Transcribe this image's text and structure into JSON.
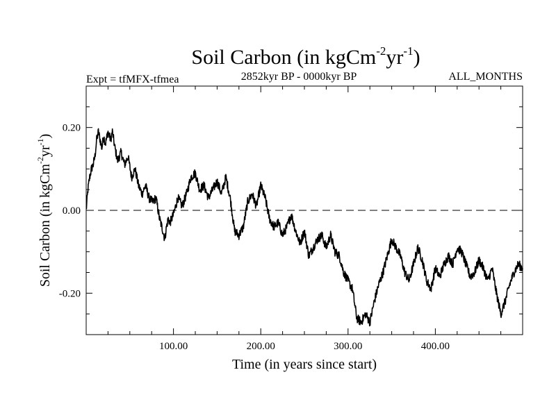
{
  "chart_data": {
    "type": "line",
    "title": "Soil Carbon (in kgCm",
    "title_sup1": "-2",
    "title_mid": "yr",
    "title_sup2": "-1",
    "title_end": ")",
    "subtitle_left": "Expt = tfMFX-tfmea",
    "subtitle_center": "2852kyr BP - 0000kyr BP",
    "subtitle_right": "ALL_MONTHS",
    "xlabel": "Time (in years since start)",
    "ylabel_main": "Soil Carbon (in kgCm",
    "ylabel_sup1": "-2",
    "ylabel_mid": "yr",
    "ylabel_sup2": "-1",
    "ylabel_end": ")",
    "xlim": [
      0,
      500
    ],
    "ylim": [
      -0.3,
      0.3
    ],
    "x_ticks": [
      {
        "value": 100,
        "label": "100.00"
      },
      {
        "value": 200,
        "label": "200.00"
      },
      {
        "value": 300,
        "label": "300.00"
      },
      {
        "value": 400,
        "label": "400.00"
      }
    ],
    "y_ticks": [
      {
        "value": 0.2,
        "label": "0.20"
      },
      {
        "value": 0.0,
        "label": "0.00"
      },
      {
        "value": -0.2,
        "label": "-0.20"
      }
    ],
    "x_minor_step": 25,
    "y_minor_step": 0.05,
    "reference_line": {
      "y": 0.0,
      "style": "dashed"
    },
    "series": [
      {
        "name": "Soil Carbon",
        "color": "#000000",
        "x": [
          0,
          2,
          4,
          6,
          8,
          10,
          12,
          14,
          16,
          18,
          20,
          22,
          25,
          28,
          30,
          33,
          36,
          40,
          44,
          48,
          52,
          56,
          60,
          64,
          68,
          72,
          76,
          80,
          84,
          88,
          90,
          92,
          94,
          96,
          100,
          105,
          110,
          115,
          120,
          125,
          130,
          135,
          140,
          145,
          150,
          155,
          160,
          165,
          170,
          175,
          180,
          185,
          190,
          195,
          200,
          205,
          210,
          215,
          220,
          225,
          230,
          235,
          240,
          245,
          250,
          255,
          260,
          265,
          270,
          275,
          280,
          285,
          290,
          295,
          300,
          305,
          310,
          315,
          320,
          325,
          330,
          335,
          340,
          345,
          350,
          355,
          360,
          365,
          370,
          375,
          380,
          385,
          390,
          395,
          400,
          405,
          410,
          415,
          420,
          425,
          430,
          435,
          440,
          445,
          450,
          455,
          460,
          465,
          470,
          475,
          480,
          485,
          490,
          495,
          500
        ],
        "y": [
          0.0,
          0.05,
          0.08,
          0.1,
          0.11,
          0.13,
          0.17,
          0.19,
          0.17,
          0.15,
          0.18,
          0.16,
          0.19,
          0.17,
          0.19,
          0.15,
          0.12,
          0.14,
          0.11,
          0.13,
          0.08,
          0.1,
          0.06,
          0.04,
          0.06,
          0.03,
          0.02,
          0.03,
          -0.02,
          -0.05,
          -0.07,
          -0.04,
          -0.02,
          -0.03,
          -0.01,
          0.03,
          0.01,
          0.04,
          0.08,
          0.09,
          0.05,
          0.06,
          0.03,
          0.05,
          0.07,
          0.04,
          0.08,
          0.03,
          -0.05,
          -0.06,
          -0.04,
          0.02,
          0.04,
          0.01,
          0.06,
          0.03,
          -0.02,
          -0.04,
          -0.03,
          -0.06,
          -0.04,
          -0.01,
          -0.05,
          -0.08,
          -0.05,
          -0.11,
          -0.09,
          -0.07,
          -0.06,
          -0.09,
          -0.06,
          -0.1,
          -0.11,
          -0.15,
          -0.17,
          -0.19,
          -0.26,
          -0.27,
          -0.25,
          -0.27,
          -0.22,
          -0.18,
          -0.15,
          -0.11,
          -0.07,
          -0.09,
          -0.11,
          -0.15,
          -0.17,
          -0.13,
          -0.09,
          -0.12,
          -0.17,
          -0.19,
          -0.14,
          -0.16,
          -0.13,
          -0.11,
          -0.13,
          -0.09,
          -0.1,
          -0.13,
          -0.16,
          -0.15,
          -0.12,
          -0.14,
          -0.17,
          -0.14,
          -0.2,
          -0.25,
          -0.22,
          -0.18,
          -0.15,
          -0.13,
          -0.14
        ]
      }
    ]
  }
}
